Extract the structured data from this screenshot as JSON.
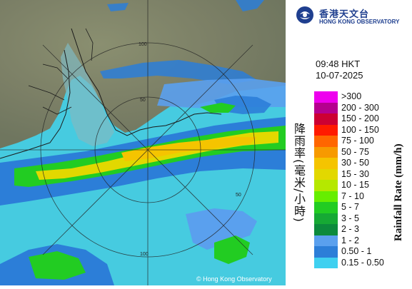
{
  "logo": {
    "chinese": "香港天文台",
    "english": "HONG KONG OBSERVATORY"
  },
  "time": "09:48 HKT",
  "date": "10-07-2025",
  "legend_title_cn": "降雨率(毫米/小時)",
  "legend_title_en": "Rainfall Rate (mm/h)",
  "legend": [
    {
      "label": ">300",
      "color": "#ee00ee"
    },
    {
      "label": "200 - 300",
      "color": "#b5008e"
    },
    {
      "label": "150 - 200",
      "color": "#cc0033"
    },
    {
      "label": "100 - 150",
      "color": "#ff1a00"
    },
    {
      "label": "75 - 100",
      "color": "#ff6600"
    },
    {
      "label": "50 - 75",
      "color": "#f79a00"
    },
    {
      "label": "30 - 50",
      "color": "#f5c400"
    },
    {
      "label": "15 - 30",
      "color": "#e2d800"
    },
    {
      "label": "10 - 15",
      "color": "#b5e800"
    },
    {
      "label": "7 - 10",
      "color": "#66ee00"
    },
    {
      "label": "5 - 7",
      "color": "#22cc22"
    },
    {
      "label": "3 - 5",
      "color": "#16a934"
    },
    {
      "label": "2 - 3",
      "color": "#0c8a3c"
    },
    {
      "label": "1 - 2",
      "color": "#5aa0ee"
    },
    {
      "label": "0.50 - 1",
      "color": "#2c7ed8"
    },
    {
      "label": "0.15 - 0.50",
      "color": "#3fd0f0"
    }
  ],
  "range_labels": [
    "50",
    "100",
    "50",
    "100"
  ],
  "copyright": "© Hong Kong Observatory"
}
